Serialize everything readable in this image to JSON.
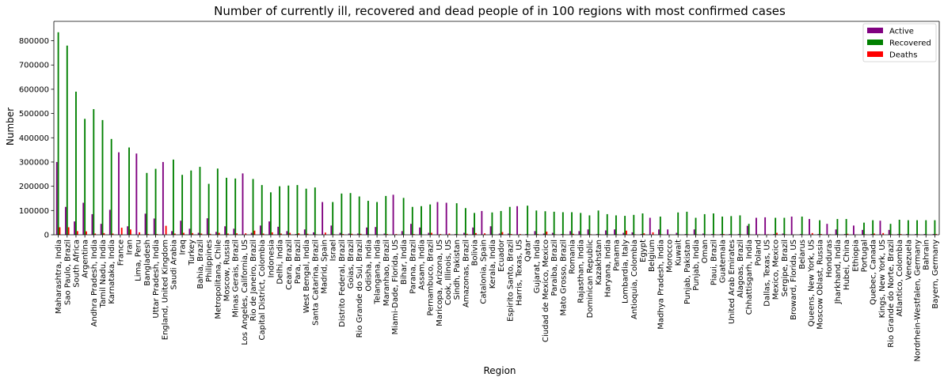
{
  "chart_data": {
    "type": "bar",
    "title": "Number of currently ill, recovered and dead people of in 100 regions with most confirmed cases",
    "xlabel": "Region",
    "ylabel": "Number",
    "ylim": [
      0,
      880000
    ],
    "yticks": [
      0,
      100000,
      200000,
      300000,
      400000,
      500000,
      600000,
      700000,
      800000
    ],
    "legend_position": "top-right",
    "grid": false,
    "categories": [
      "Maharashtra, India",
      "Sao Paulo, Brazil",
      "South Africa",
      "Argentina",
      "Andhra Pradesh, India",
      "Tamil Nadu, India",
      "Karnataka, India",
      "France",
      "Iran",
      "Lima, Peru",
      "Bangladesh",
      "Uttar Pradesh, India",
      "England, United Kingdom",
      "Saudi Arabia",
      "Iraq",
      "Turkey",
      "Bahia, Brazil",
      "Philippines",
      "Metropolitana, Chile",
      "Moscow, Russia",
      "Minas Gerais, Brazil",
      "Los Angeles, California, US",
      "Rio de Janeiro, Brazil",
      "Capital District, Colombia",
      "Indonesia",
      "Delhi, India",
      "Ceara, Brazil",
      "Para, Brazil",
      "West Bengal, India",
      "Santa Catarina, Brazil",
      "Madrid, Spain",
      "Israel",
      "Distrito Federal, Brazil",
      "Goias, Brazil",
      "Rio Grande do Sul, Brazil",
      "Odisha, India",
      "Telangana, India",
      "Maranhao, Brazil",
      "Miami-Dade, Florida, US",
      "Bihar, India",
      "Parana, Brazil",
      "Assam, India",
      "Pernambuco, Brazil",
      "Maricopa, Arizona, US",
      "Cook, Illinois, US",
      "Sindh, Pakistan",
      "Amazonas, Brazil",
      "Bolivia",
      "Catalonia, Spain",
      "Kerala, India",
      "Ecuador",
      "Espirito Santo, Brazil",
      "Harris, Texas, US",
      "Qatar",
      "Gujarat, India",
      "Ciudad de Mexico, Mexico",
      "Paraiba, Brazil",
      "Mato Grosso, Brazil",
      "Romania",
      "Rajasthan, India",
      "Dominican Republic",
      "Kazakhstan",
      "Haryana, India",
      "Panama",
      "Lombardia, Italy",
      "Antioquia, Colombia",
      "Egypt",
      "Belgium",
      "Madhya Pradesh, India",
      "Morocco",
      "Kuwait",
      "Punjab, Pakistan",
      "Punjab, India",
      "Oman",
      "Piaui, Brazil",
      "Guatemala",
      "United Arab Emirates",
      "Alagoas, Brazil",
      "Chhattisgarh, India",
      "Poland",
      "Dallas, Texas, US",
      "Mexico, Mexico",
      "Sergipe, Brazil",
      "Broward, Florida, US",
      "Belarus",
      "Queens, New York, US",
      "Moscow Oblast, Russia",
      "Honduras",
      "Jharkhand, India",
      "Hubei, China",
      "Ethiopia",
      "Portugal",
      "Quebec, Canada",
      "Kings, New York, US",
      "Rio Grande do Norte, Brazil",
      "Atlantico, Colombia",
      "Venezuela",
      "Nordrhein-Westfalen, Germany",
      "Bahrain",
      "Bayern, Germany"
    ],
    "series": [
      {
        "name": "Active",
        "color": "#800080",
        "values": [
          300000,
          115000,
          55000,
          132000,
          85000,
          45000,
          103000,
          340000,
          35000,
          335000,
          87000,
          67000,
          300000,
          15000,
          58000,
          25000,
          8000,
          68000,
          12000,
          35000,
          25000,
          253000,
          8000,
          38000,
          55000,
          33000,
          15000,
          3000,
          22000,
          10000,
          135000,
          38000,
          8000,
          5000,
          5000,
          30000,
          32000,
          5000,
          165000,
          15000,
          45000,
          30000,
          8000,
          135000,
          132000,
          3000,
          8000,
          30000,
          98000,
          35000,
          5000,
          5000,
          118000,
          3000,
          15000,
          5000,
          8000,
          3000,
          15000,
          15000,
          22000,
          3000,
          18000,
          22000,
          8000,
          10000,
          3000,
          70000,
          22000,
          22000,
          8000,
          3000,
          22000,
          5000,
          3000,
          3000,
          3000,
          3000,
          37000,
          70000,
          72000,
          3000,
          5000,
          75000,
          3000,
          65000,
          3000,
          45000,
          22000,
          3000,
          38000,
          20000,
          3000,
          58000,
          20000,
          3000,
          3000,
          3000,
          3000,
          3000
        ]
      },
      {
        "name": "Recovered",
        "color": "#008000",
        "values": [
          835000,
          780000,
          590000,
          478000,
          518000,
          473000,
          395000,
          0,
          360000,
          0,
          255000,
          272000,
          0,
          310000,
          247000,
          265000,
          280000,
          210000,
          273000,
          235000,
          232000,
          0,
          230000,
          205000,
          175000,
          200000,
          203000,
          205000,
          190000,
          195000,
          0,
          135000,
          170000,
          172000,
          158000,
          140000,
          135000,
          160000,
          0,
          152000,
          115000,
          118000,
          125000,
          0,
          0,
          130000,
          110000,
          90000,
          0,
          92000,
          98000,
          115000,
          0,
          120000,
          100000,
          97000,
          95000,
          93000,
          93000,
          90000,
          80000,
          100000,
          85000,
          80000,
          78000,
          82000,
          88000,
          0,
          75000,
          0,
          92000,
          95000,
          70000,
          85000,
          88000,
          75000,
          77000,
          80000,
          45000,
          0,
          0,
          70000,
          70000,
          0,
          75000,
          0,
          60000,
          0,
          65000,
          65000,
          0,
          50000,
          60000,
          0,
          45000,
          62000,
          60000,
          60000,
          60000,
          60000
        ]
      },
      {
        "name": "Deaths",
        "color": "#ff0000",
        "values": [
          31000,
          31000,
          15000,
          14000,
          5000,
          7000,
          5000,
          29000,
          22000,
          10000,
          3000,
          3000,
          37000,
          5000,
          8000,
          7000,
          5000,
          4000,
          8000,
          5000,
          6000,
          6000,
          17000,
          5000,
          10000,
          5000,
          8000,
          6000,
          4000,
          2000,
          9000,
          2000,
          3000,
          4000,
          4000,
          1000,
          1000,
          3000,
          3000,
          1000,
          3000,
          1000,
          8000,
          3000,
          5000,
          2000,
          4000,
          7000,
          6000,
          1000,
          11000,
          3000,
          3000,
          1000,
          3000,
          13000,
          2000,
          2000,
          4000,
          1000,
          2000,
          2000,
          1000,
          2000,
          17000,
          2000,
          6000,
          10000,
          2000,
          1000,
          1000,
          2000,
          2000,
          1000,
          2000,
          3000,
          1000,
          2000,
          1000,
          2000,
          2000,
          8000,
          2000,
          1000,
          1000,
          7000,
          3000,
          2000,
          1000,
          4000,
          1000,
          2000,
          5000,
          7000,
          2000,
          3000,
          1000,
          2000,
          1000,
          3000
        ]
      }
    ]
  }
}
